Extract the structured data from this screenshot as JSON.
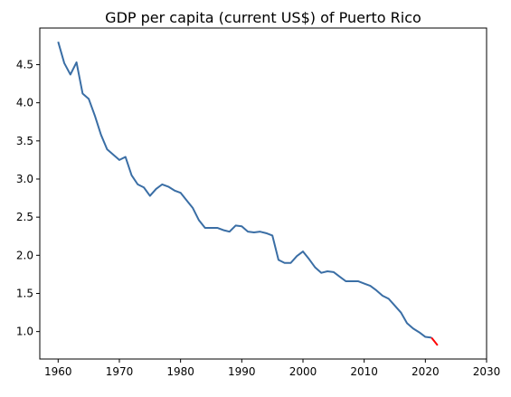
{
  "chart_data": {
    "type": "line",
    "title": "GDP per capita (current US$) of Puerto Rico",
    "xlabel": "",
    "ylabel": "",
    "xlim": [
      1957,
      2030
    ],
    "ylim": [
      0.64,
      4.98
    ],
    "xticks": [
      1960,
      1970,
      1980,
      1990,
      2000,
      2010,
      2020,
      2030
    ],
    "yticks": [
      1.0,
      1.5,
      2.0,
      2.5,
      3.0,
      3.5,
      4.0,
      4.5
    ],
    "ytick_labels": [
      "1.0",
      "1.5",
      "2.0",
      "2.5",
      "3.0",
      "3.5",
      "4.0",
      "4.5"
    ],
    "grid": false,
    "series": [
      {
        "color": "#3a6ea5",
        "x": [
          1960,
          1961,
          1962,
          1963,
          1964,
          1965,
          1966,
          1967,
          1968,
          1969,
          1970,
          1971,
          1972,
          1973,
          1974,
          1975,
          1976,
          1977,
          1978,
          1979,
          1980,
          1981,
          1982,
          1983,
          1984,
          1985,
          1986,
          1987,
          1988,
          1989,
          1990,
          1991,
          1992,
          1993,
          1994,
          1995,
          1996,
          1997,
          1998,
          1999,
          2000,
          2001,
          2002,
          2003,
          2004,
          2005,
          2006,
          2007,
          2008,
          2009,
          2010,
          2011,
          2012,
          2013,
          2014,
          2015,
          2016,
          2017,
          2018,
          2019,
          2020,
          2021
        ],
        "y": [
          4.8,
          4.52,
          4.37,
          4.53,
          4.12,
          4.05,
          3.83,
          3.58,
          3.39,
          3.32,
          3.25,
          3.29,
          3.05,
          2.93,
          2.89,
          2.78,
          2.87,
          2.93,
          2.9,
          2.85,
          2.82,
          2.72,
          2.62,
          2.46,
          2.36,
          2.36,
          2.36,
          2.33,
          2.31,
          2.39,
          2.38,
          2.31,
          2.3,
          2.31,
          2.29,
          2.26,
          1.94,
          1.9,
          1.9,
          1.99,
          2.05,
          1.95,
          1.84,
          1.77,
          1.79,
          1.78,
          1.72,
          1.66,
          1.66,
          1.66,
          1.63,
          1.6,
          1.54,
          1.47,
          1.43,
          1.34,
          1.25,
          1.11,
          1.04,
          0.99,
          0.93,
          0.92
        ]
      },
      {
        "color": "#ff0000",
        "x": [
          2021,
          2022
        ],
        "y": [
          0.92,
          0.82
        ]
      }
    ]
  }
}
